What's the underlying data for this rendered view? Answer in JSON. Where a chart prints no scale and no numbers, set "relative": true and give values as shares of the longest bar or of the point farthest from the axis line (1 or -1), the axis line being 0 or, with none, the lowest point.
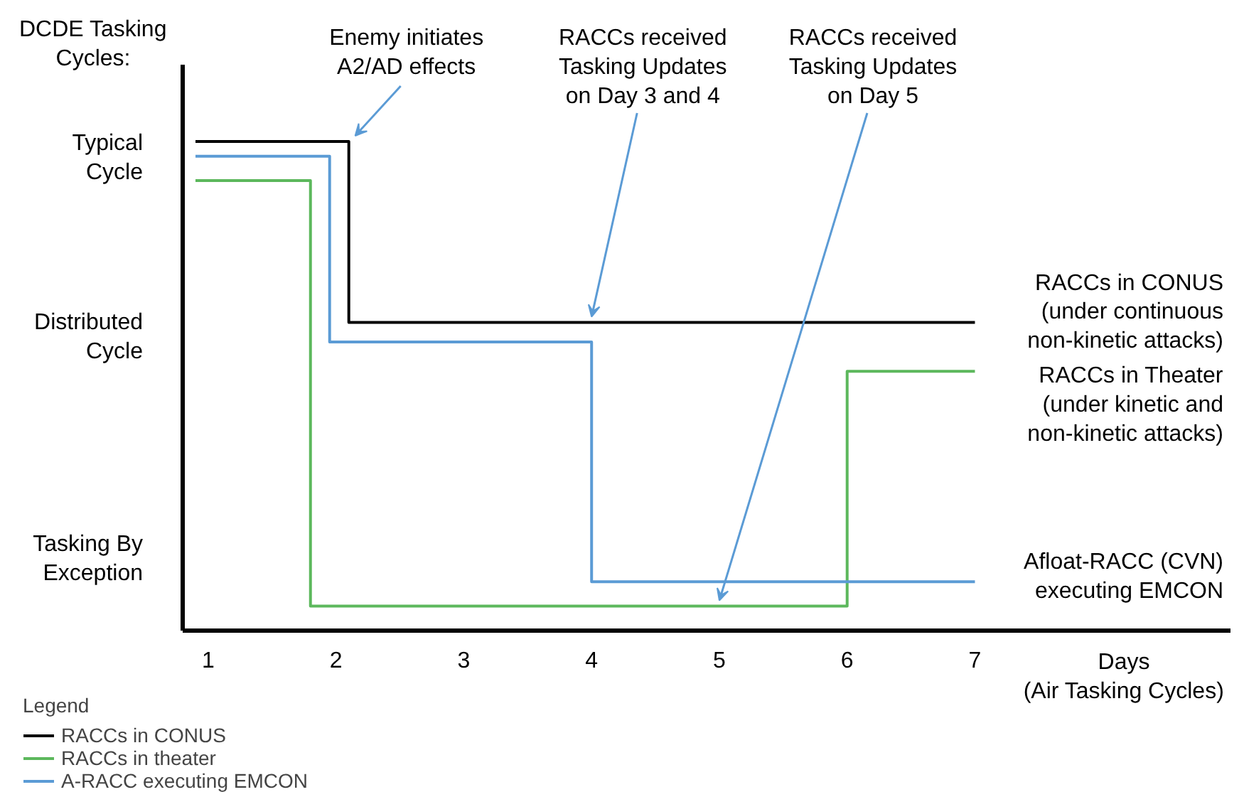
{
  "chart_data": {
    "type": "step",
    "relative": true,
    "ylabel": "DCDE Tasking\nCycles:",
    "xlabel": "Days\n(Air Tasking Cycles)",
    "legend_title": "Legend",
    "xlim": [
      0.8,
      9.0
    ],
    "xticks": [
      1,
      2,
      3,
      4,
      5,
      6,
      7
    ],
    "series": [
      {
        "name": "RACCs in CONUS",
        "color": "#000000",
        "x": [
          0.9,
          2.1,
          7.0
        ],
        "values": [
          1.0,
          0.63,
          0.63
        ]
      },
      {
        "name": "RACCs in theater",
        "color": "#5cb85c",
        "x": [
          0.9,
          1.8,
          6.0,
          7.0
        ],
        "values": [
          0.92,
          0.05,
          0.53,
          0.53
        ]
      },
      {
        "name": "A-RACC executing EMCON",
        "color": "#5b9bd5",
        "x": [
          0.9,
          1.95,
          4.0,
          7.0
        ],
        "values": [
          0.97,
          0.59,
          0.1,
          0.1
        ]
      }
    ],
    "annotations": [
      "Typical\nCycle",
      "Distributed\nCycle",
      "Tasking By\nException",
      {
        "text": "Enemy initiates\nA2/AD effects",
        "x": 2.15,
        "y": 1.0
      },
      {
        "text": "RACCs received\nTasking Updates\non Day 3 and 4",
        "x": 4.0,
        "y": 0.63
      },
      {
        "text": "RACCs received\nTasking Updates\non Day 5",
        "x": 5.0,
        "y": 0.05
      },
      {
        "text": "RACCs in CONUS\n(under continuous\nnon-kinetic attacks)",
        "x": 7.0,
        "y": 0.63
      },
      {
        "text": "RACCs in Theater\n(under kinetic and\nnon-kinetic attacks)",
        "x": 7.0,
        "y": 0.53
      },
      {
        "text": "Afloat-RACC (CVN)\nexecuting EMCON",
        "x": 7.0,
        "y": 0.1
      }
    ],
    "legend": "bottom left",
    "line_style": "solid"
  }
}
